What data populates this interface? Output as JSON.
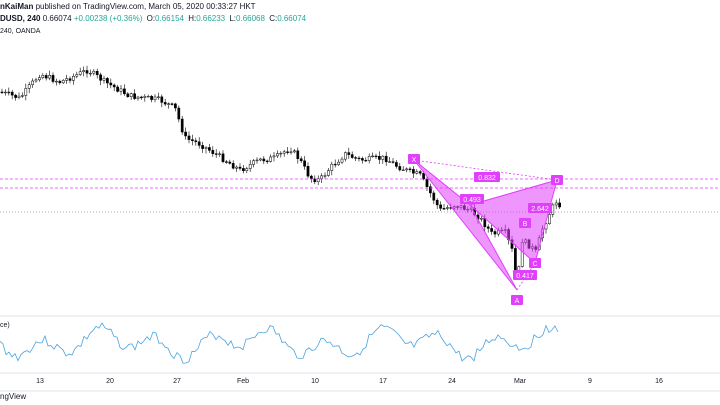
{
  "header": {
    "author": "nKaiMan",
    "published_text": "published on TradingView.com, March 05, 2020 00:33:27 HKT"
  },
  "symbol": {
    "name": "DUSD, 240",
    "price": "0.66074",
    "change": "+0.00238 (+0.36%)",
    "open_label": "O:",
    "open": "0.66154",
    "high_label": "H:",
    "high": "0.66233",
    "low_label": "L:",
    "low": "0.66068",
    "close_label": "C:",
    "close": "0.66074",
    "exchange": "240, OANDA"
  },
  "indicator": {
    "label": "ce)"
  },
  "footer": {
    "brand": "ngView"
  },
  "pattern": {
    "points": [
      "X",
      "A",
      "B",
      "C",
      "D"
    ],
    "ratios": {
      "xb": "0.493",
      "ac": "0.417",
      "bd": "2.642",
      "xd": "0.832"
    },
    "color": "#e040fb"
  },
  "x_axis": {
    "ticks": [
      "13",
      "20",
      "27",
      "Feb",
      "10",
      "17",
      "24",
      "Mar",
      "9",
      "16"
    ]
  },
  "colors": {
    "bull": "#ffffff",
    "bear": "#000000",
    "rsi": "#4aa3df",
    "pattern": "#e040fb"
  }
}
